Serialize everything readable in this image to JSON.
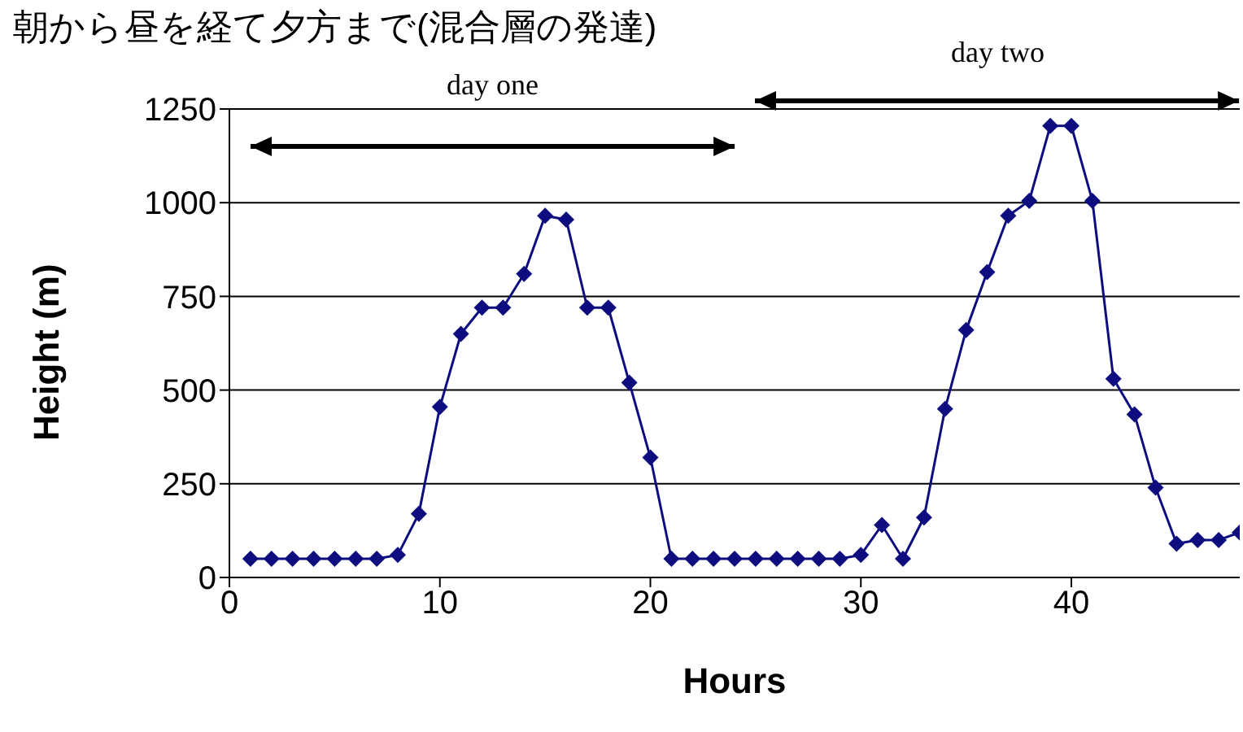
{
  "chart_data": {
    "type": "line",
    "title": "朝から昼を経て夕方まで(混合層の発達)",
    "xlabel": "Hours",
    "ylabel": "Height (m)",
    "annotations": [
      "day one",
      "day two"
    ],
    "x": [
      1,
      2,
      3,
      4,
      5,
      6,
      7,
      8,
      9,
      10,
      11,
      12,
      13,
      14,
      15,
      16,
      17,
      18,
      19,
      20,
      21,
      22,
      23,
      24,
      25,
      26,
      27,
      28,
      29,
      30,
      31,
      32,
      33,
      34,
      35,
      36,
      37,
      38,
      39,
      40,
      41,
      42,
      43,
      44,
      45,
      46,
      47,
      48
    ],
    "series": [
      {
        "color": "#0d0d80",
        "values": [
          50,
          50,
          50,
          50,
          50,
          50,
          50,
          60,
          170,
          455,
          650,
          720,
          720,
          810,
          965,
          955,
          720,
          720,
          520,
          320,
          50,
          50,
          50,
          50,
          50,
          50,
          50,
          50,
          50,
          60,
          140,
          50,
          160,
          450,
          660,
          815,
          965,
          1005,
          1205,
          1205,
          1005,
          530,
          435,
          240,
          90,
          100,
          100,
          120
        ]
      }
    ],
    "xlim": [
      0,
      48
    ],
    "xticks": [
      0,
      10,
      20,
      30,
      40
    ],
    "ylim": [
      0,
      1250
    ],
    "yticks": [
      0,
      250,
      500,
      750,
      1000,
      1250
    ],
    "grid": "y",
    "marker": "diamond",
    "legend": false
  }
}
